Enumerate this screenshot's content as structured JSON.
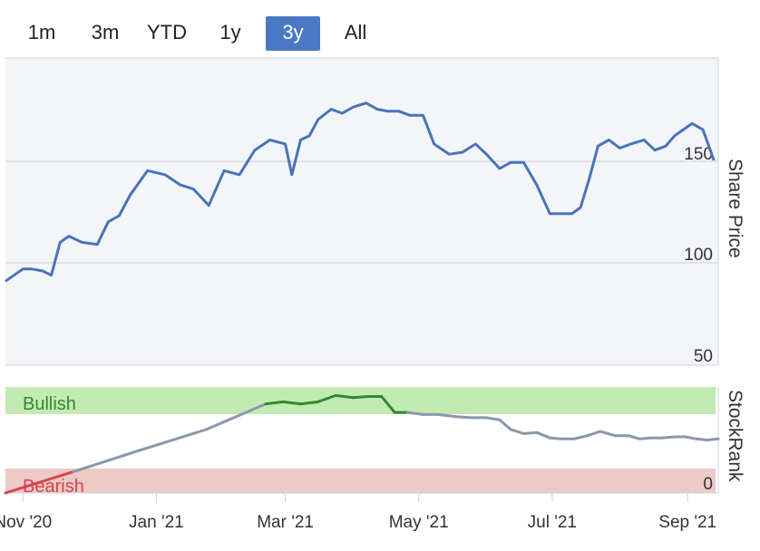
{
  "range_selector": {
    "buttons": [
      {
        "label": "1m",
        "active": false
      },
      {
        "label": "3m",
        "active": false
      },
      {
        "label": "YTD",
        "active": false
      },
      {
        "label": "1y",
        "active": false
      },
      {
        "label": "3y",
        "active": true
      },
      {
        "label": "All",
        "active": false
      }
    ]
  },
  "colors": {
    "price_line": "#4a74b8",
    "bullish_band": "#c3eab3",
    "bearish_band": "#eccac5",
    "bullish_text": "#2f8a2f",
    "bearish_text": "#d9424f",
    "rank_line_neutral": "#8a98aa",
    "rank_line_bullish": "#2e8b2e",
    "rank_line_bearish": "#d9424f"
  },
  "chart_data": [
    {
      "type": "line",
      "ylabel": "Share Price",
      "ylim": [
        50,
        200
      ],
      "yticks": [
        "50",
        "100",
        "150"
      ],
      "grid": true,
      "x": [
        "2020-10-24",
        "2020-11-01",
        "2020-11-05",
        "2020-11-10",
        "2020-11-14",
        "2020-11-18",
        "2020-11-22",
        "2020-11-28",
        "2020-12-05",
        "2020-12-10",
        "2020-12-15",
        "2020-12-20",
        "2020-12-28",
        "2021-01-05",
        "2021-01-12",
        "2021-01-18",
        "2021-01-25",
        "2021-02-01",
        "2021-02-08",
        "2021-02-15",
        "2021-02-22",
        "2021-03-01",
        "2021-03-04",
        "2021-03-08",
        "2021-03-12",
        "2021-03-16",
        "2021-03-22",
        "2021-03-27",
        "2021-04-01",
        "2021-04-07",
        "2021-04-12",
        "2021-04-17",
        "2021-04-22",
        "2021-04-27",
        "2021-05-03",
        "2021-05-08",
        "2021-05-15",
        "2021-05-21",
        "2021-05-27",
        "2021-06-01",
        "2021-06-07",
        "2021-06-12",
        "2021-06-18",
        "2021-06-24",
        "2021-06-30",
        "2021-07-05",
        "2021-07-10",
        "2021-07-14",
        "2021-07-18",
        "2021-07-22",
        "2021-07-27",
        "2021-08-01",
        "2021-08-06",
        "2021-08-12",
        "2021-08-17",
        "2021-08-22",
        "2021-08-26",
        "2021-08-30",
        "2021-09-03",
        "2021-09-08",
        "2021-09-13"
      ],
      "series": [
        {
          "values": [
            91,
            97,
            97,
            96,
            94,
            110,
            113,
            110,
            109,
            120,
            123,
            133,
            145,
            143,
            138,
            136,
            128,
            145,
            143,
            155,
            160,
            158,
            143,
            160,
            162,
            170,
            175,
            173,
            176,
            178,
            175,
            174,
            174,
            172,
            172,
            158,
            153,
            154,
            158,
            153,
            146,
            149,
            149,
            138,
            124,
            124,
            124,
            127,
            141,
            157,
            160,
            156,
            158,
            160,
            155,
            157,
            162,
            165,
            168,
            165,
            150
          ]
        }
      ]
    },
    {
      "type": "line",
      "ylabel": "StockRank",
      "ylim": [
        0,
        100
      ],
      "yticks": [
        "0"
      ],
      "bands": [
        {
          "label": "Bullish"
        },
        {
          "label": "Bearish"
        }
      ],
      "x": [
        "2020-10-24",
        "2020-11-24",
        "2020-12-24",
        "2021-01-24",
        "2021-02-20",
        "2021-02-28",
        "2021-03-08",
        "2021-03-16",
        "2021-03-24",
        "2021-04-01",
        "2021-04-08",
        "2021-04-14",
        "2021-04-20",
        "2021-04-26",
        "2021-05-03",
        "2021-05-10",
        "2021-05-18",
        "2021-05-25",
        "2021-06-01",
        "2021-06-07",
        "2021-06-12",
        "2021-06-18",
        "2021-06-24",
        "2021-06-30",
        "2021-07-05",
        "2021-07-11",
        "2021-07-17",
        "2021-07-23",
        "2021-07-30",
        "2021-08-05",
        "2021-08-10",
        "2021-08-15",
        "2021-08-20",
        "2021-08-26",
        "2021-08-31",
        "2021-09-05",
        "2021-09-10",
        "2021-09-15"
      ],
      "series": [
        {
          "values": [
            0,
            20,
            40,
            60,
            84,
            86,
            84,
            86,
            92,
            90,
            91,
            91,
            76,
            76,
            74,
            74,
            72,
            71,
            71,
            69,
            60,
            56,
            57,
            52,
            51,
            51,
            54,
            58,
            54,
            54,
            51,
            52,
            52,
            53,
            53,
            51,
            50,
            51
          ]
        }
      ]
    }
  ],
  "x_axis_labels": [
    "Nov '20",
    "Jan '21",
    "Mar '21",
    "May '21",
    "Jul '21",
    "Sep '21"
  ],
  "x_axis_dates": [
    "2020-11-01",
    "2021-01-01",
    "2021-03-01",
    "2021-05-01",
    "2021-07-01",
    "2021-09-01"
  ]
}
